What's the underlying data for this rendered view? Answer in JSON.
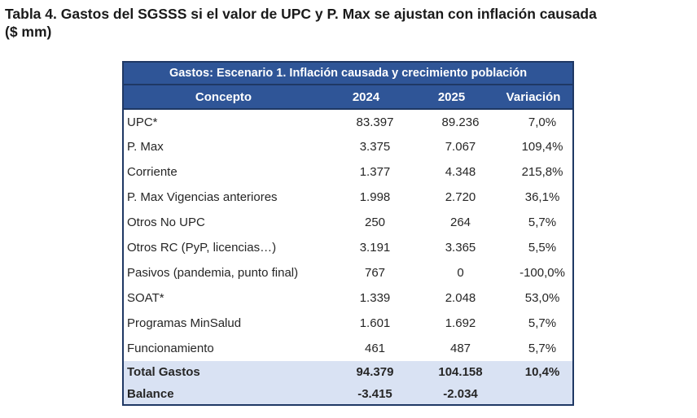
{
  "document": {
    "title": "Tabla 4. Gastos del SGSSS si el valor de UPC y P. Max se ajustan con inflación causada",
    "title_unit": "($ mm)"
  },
  "table": {
    "banner": "Gastos: Escenario 1. Inflación causada y crecimiento población",
    "headers": [
      "Concepto",
      "2024",
      "2025",
      "Variación"
    ],
    "rows": [
      [
        "UPC*",
        "83.397",
        "89.236",
        "7,0%"
      ],
      [
        "P. Max",
        "3.375",
        "7.067",
        "109,4%"
      ],
      [
        "Corriente",
        "1.377",
        "4.348",
        "215,8%"
      ],
      [
        "P. Max Vigencias anteriores",
        "1.998",
        "2.720",
        "36,1%"
      ],
      [
        "Otros No UPC",
        "250",
        "264",
        "5,7%"
      ],
      [
        "Otros RC (PyP, licencias…)",
        "3.191",
        "3.365",
        "5,5%"
      ],
      [
        "Pasivos (pandemia, punto final)",
        "767",
        "0",
        "-100,0%"
      ],
      [
        "SOAT*",
        "1.339",
        "2.048",
        "53,0%"
      ],
      [
        "Programas MinSalud",
        "1.601",
        "1.692",
        "5,7%"
      ],
      [
        "Funcionamiento",
        "461",
        "487",
        "5,7%"
      ]
    ],
    "total_rows": [
      [
        "Total Gastos",
        "94.379",
        "104.158",
        "10,4%"
      ],
      [
        "Balance",
        "-3.415",
        "-2.034",
        ""
      ]
    ],
    "colors": {
      "header_blue": "#2F5597",
      "border_navy": "#1F3864",
      "totals_bg": "#D9E2F3",
      "header_text": "#FFFFFF",
      "body_text": "#262626"
    }
  }
}
